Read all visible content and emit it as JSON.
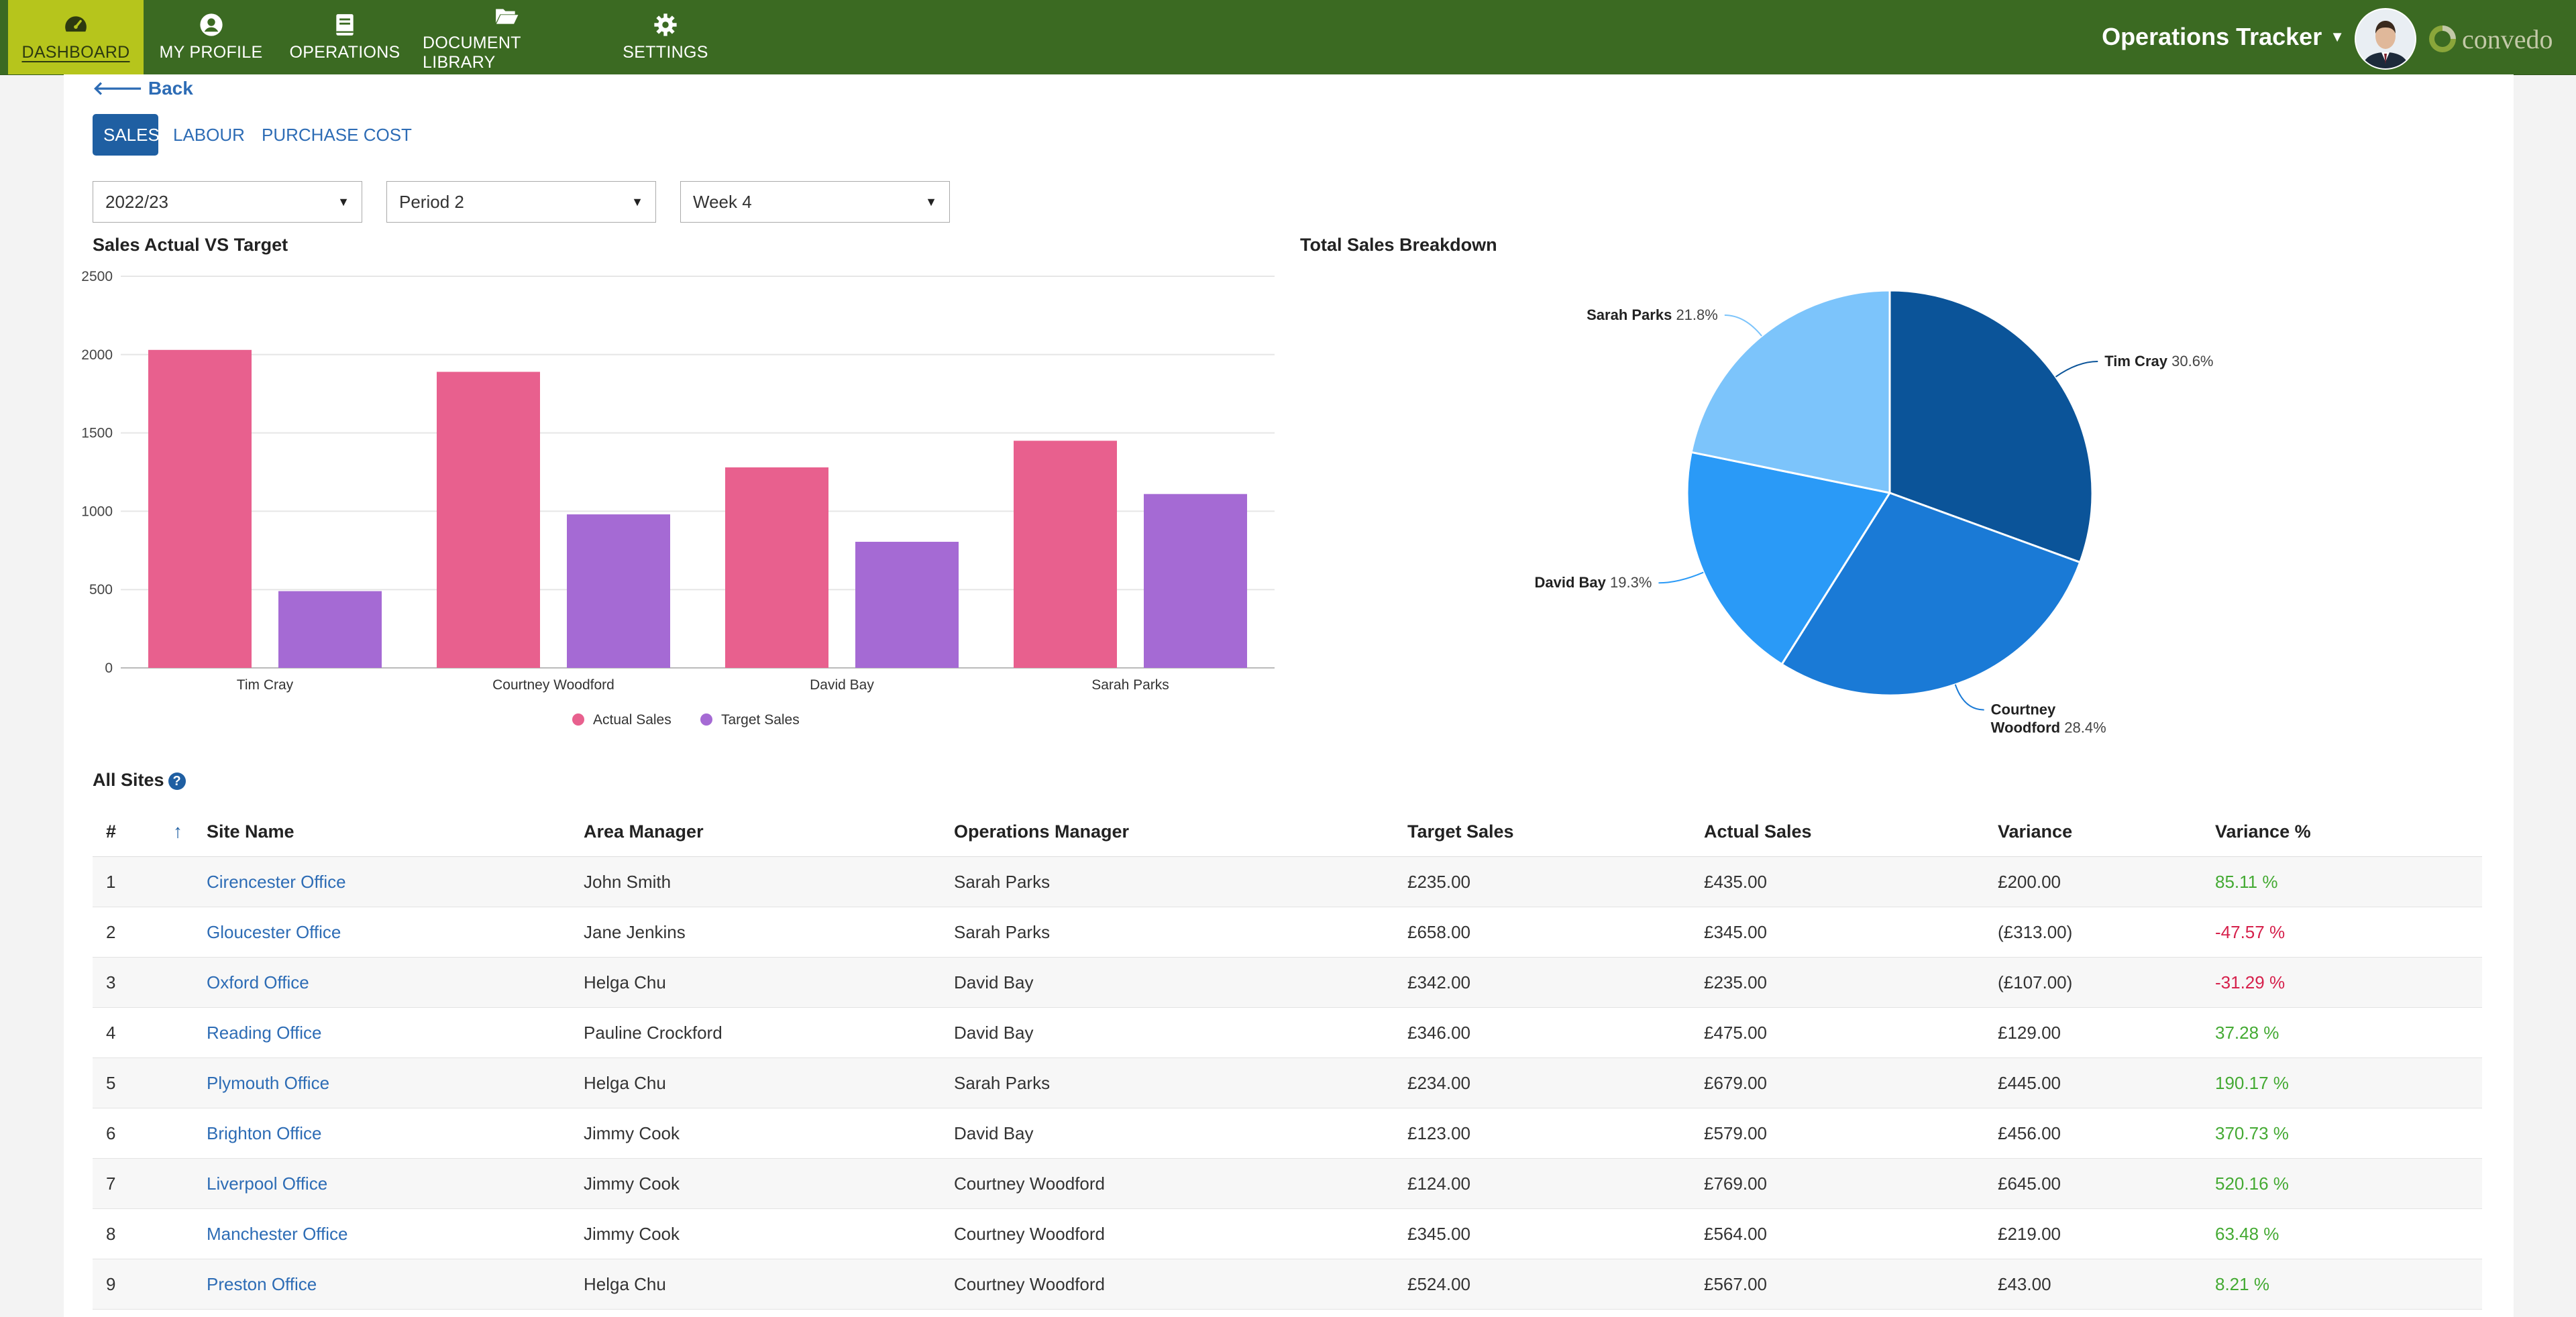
{
  "nav": {
    "items": [
      {
        "label": "DASHBOARD",
        "icon": "speedometer-icon"
      },
      {
        "label": "MY PROFILE",
        "icon": "user-circle-icon"
      },
      {
        "label": "OPERATIONS",
        "icon": "book-icon"
      },
      {
        "label": "DOCUMENT LIBRARY",
        "icon": "folder-open-icon"
      },
      {
        "label": "SETTINGS",
        "icon": "gear-icon"
      }
    ],
    "active": "DASHBOARD",
    "app_title": "Operations Tracker",
    "logo_text": "convedo",
    "colors": {
      "bar": "#3b6a22",
      "active": "#b6c51c"
    }
  },
  "back_label": "Back",
  "tabs": [
    {
      "label": "SALES",
      "active": true
    },
    {
      "label": "LABOUR",
      "active": false
    },
    {
      "label": "PURCHASE COST",
      "active": false
    }
  ],
  "filters": {
    "year": "2022/23",
    "period": "Period 2",
    "week": "Week 4"
  },
  "chart_data": [
    {
      "type": "bar",
      "title": "Sales Actual VS Target",
      "categories": [
        "Tim Cray",
        "Courtney Woodford",
        "David Bay",
        "Sarah Parks"
      ],
      "series": [
        {
          "name": "Actual Sales",
          "values": [
            2030,
            1890,
            1280,
            1450
          ],
          "color": "#e8608e"
        },
        {
          "name": "Target Sales",
          "values": [
            490,
            980,
            805,
            1110
          ],
          "color": "#a56ad4"
        }
      ],
      "ylim": [
        0,
        2500
      ],
      "yticks": [
        0,
        500,
        1000,
        1500,
        2000,
        2500
      ],
      "grid": true,
      "legend": "bottom"
    },
    {
      "type": "pie",
      "title": "Total Sales Breakdown",
      "slices": [
        {
          "label": "Tim Cray",
          "value": 30.6,
          "display": "30.6%",
          "color": "#0b5499"
        },
        {
          "label": "Courtney Woodford",
          "value": 28.4,
          "display": "28.4%",
          "color": "#1a7ad6"
        },
        {
          "label": "David Bay",
          "value": 19.3,
          "display": "19.3%",
          "color": "#2a9af7"
        },
        {
          "label": "Sarah Parks",
          "value": 21.8,
          "display": "21.8%",
          "color": "#7cc4fb"
        }
      ]
    }
  ],
  "table": {
    "title": "All Sites",
    "headers": {
      "num": "#",
      "site": "Site Name",
      "area": "Area Manager",
      "ops": "Operations Manager",
      "target": "Target Sales",
      "actual": "Actual Sales",
      "variance": "Variance",
      "variance_pct": "Variance %"
    },
    "rows": [
      {
        "num": "1",
        "site": "Cirencester Office",
        "area": "John Smith",
        "ops": "Sarah Parks",
        "target": "£235.00",
        "actual": "£435.00",
        "variance": "£200.00",
        "variance_pct": "85.11 %",
        "sign": "pos"
      },
      {
        "num": "2",
        "site": "Gloucester Office",
        "area": "Jane Jenkins",
        "ops": "Sarah Parks",
        "target": "£658.00",
        "actual": "£345.00",
        "variance": "(£313.00)",
        "variance_pct": "-47.57 %",
        "sign": "neg"
      },
      {
        "num": "3",
        "site": "Oxford Office",
        "area": "Helga Chu",
        "ops": "David Bay",
        "target": "£342.00",
        "actual": "£235.00",
        "variance": "(£107.00)",
        "variance_pct": "-31.29 %",
        "sign": "neg"
      },
      {
        "num": "4",
        "site": "Reading Office",
        "area": "Pauline Crockford",
        "ops": "David Bay",
        "target": "£346.00",
        "actual": "£475.00",
        "variance": "£129.00",
        "variance_pct": "37.28 %",
        "sign": "pos"
      },
      {
        "num": "5",
        "site": "Plymouth Office",
        "area": "Helga Chu",
        "ops": "Sarah Parks",
        "target": "£234.00",
        "actual": "£679.00",
        "variance": "£445.00",
        "variance_pct": "190.17 %",
        "sign": "pos"
      },
      {
        "num": "6",
        "site": "Brighton Office",
        "area": "Jimmy Cook",
        "ops": "David Bay",
        "target": "£123.00",
        "actual": "£579.00",
        "variance": "£456.00",
        "variance_pct": "370.73 %",
        "sign": "pos"
      },
      {
        "num": "7",
        "site": "Liverpool Office",
        "area": "Jimmy Cook",
        "ops": "Courtney Woodford",
        "target": "£124.00",
        "actual": "£769.00",
        "variance": "£645.00",
        "variance_pct": "520.16 %",
        "sign": "pos"
      },
      {
        "num": "8",
        "site": "Manchester Office",
        "area": "Jimmy Cook",
        "ops": "Courtney Woodford",
        "target": "£345.00",
        "actual": "£564.00",
        "variance": "£219.00",
        "variance_pct": "63.48 %",
        "sign": "pos"
      },
      {
        "num": "9",
        "site": "Preston Office",
        "area": "Helga Chu",
        "ops": "Courtney Woodford",
        "target": "£524.00",
        "actual": "£567.00",
        "variance": "£43.00",
        "variance_pct": "8.21 %",
        "sign": "pos"
      }
    ]
  }
}
